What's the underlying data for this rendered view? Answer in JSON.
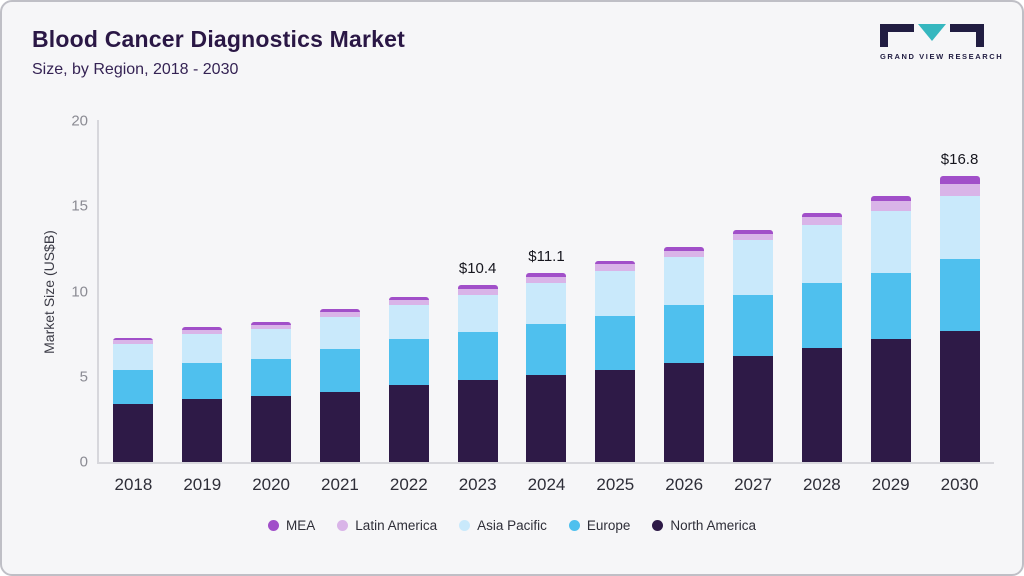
{
  "header": {
    "title": "Blood Cancer Diagnostics Market",
    "subtitle": "Size, by Region, 2018 - 2030"
  },
  "logo": {
    "text": "GRAND VIEW RESEARCH",
    "mark_dark_color": "#211d42",
    "mark_teal_color": "#36b7bf"
  },
  "chart_data": {
    "type": "bar",
    "stacked": true,
    "title": "Blood Cancer Diagnostics Market Size, by Region, 2018 - 2030",
    "xlabel": "",
    "ylabel": "Market Size (US$B)",
    "ylim": [
      0,
      20
    ],
    "yticks": [
      0,
      5,
      10,
      15,
      20
    ],
    "grid": false,
    "legend_position": "bottom",
    "categories": [
      "2018",
      "2019",
      "2020",
      "2021",
      "2022",
      "2023",
      "2024",
      "2025",
      "2026",
      "2027",
      "2028",
      "2029",
      "2030"
    ],
    "series": [
      {
        "name": "North America",
        "color": "#2e1a47",
        "values": [
          3.4,
          3.7,
          3.85,
          4.1,
          4.5,
          4.8,
          5.1,
          5.4,
          5.8,
          6.2,
          6.7,
          7.2,
          7.7
        ]
      },
      {
        "name": "Europe",
        "color": "#4fc0ee",
        "values": [
          2.0,
          2.1,
          2.2,
          2.5,
          2.7,
          2.8,
          3.0,
          3.15,
          3.4,
          3.6,
          3.8,
          3.9,
          4.2
        ]
      },
      {
        "name": "Asia Pacific",
        "color": "#c9e9fb",
        "values": [
          1.5,
          1.7,
          1.75,
          1.9,
          2.0,
          2.2,
          2.4,
          2.65,
          2.8,
          3.2,
          3.4,
          3.6,
          3.7
        ]
      },
      {
        "name": "Latin America",
        "color": "#d9b4e8",
        "values": [
          0.25,
          0.25,
          0.25,
          0.3,
          0.3,
          0.35,
          0.35,
          0.4,
          0.4,
          0.4,
          0.45,
          0.6,
          0.7
        ]
      },
      {
        "name": "MEA",
        "color": "#a14fc9",
        "values": [
          0.15,
          0.15,
          0.15,
          0.2,
          0.2,
          0.25,
          0.25,
          0.2,
          0.2,
          0.2,
          0.25,
          0.3,
          0.5
        ]
      }
    ],
    "totals": [
      7.3,
      7.9,
      8.2,
      9.0,
      9.7,
      10.4,
      11.1,
      11.8,
      12.6,
      13.6,
      14.6,
      15.6,
      16.8
    ],
    "annotations": [
      {
        "category": "2023",
        "text": "$10.4"
      },
      {
        "category": "2024",
        "text": "$11.1"
      },
      {
        "category": "2030",
        "text": "$16.8"
      }
    ],
    "legend": [
      "MEA",
      "Latin America",
      "Asia Pacific",
      "Europe",
      "North America"
    ]
  }
}
